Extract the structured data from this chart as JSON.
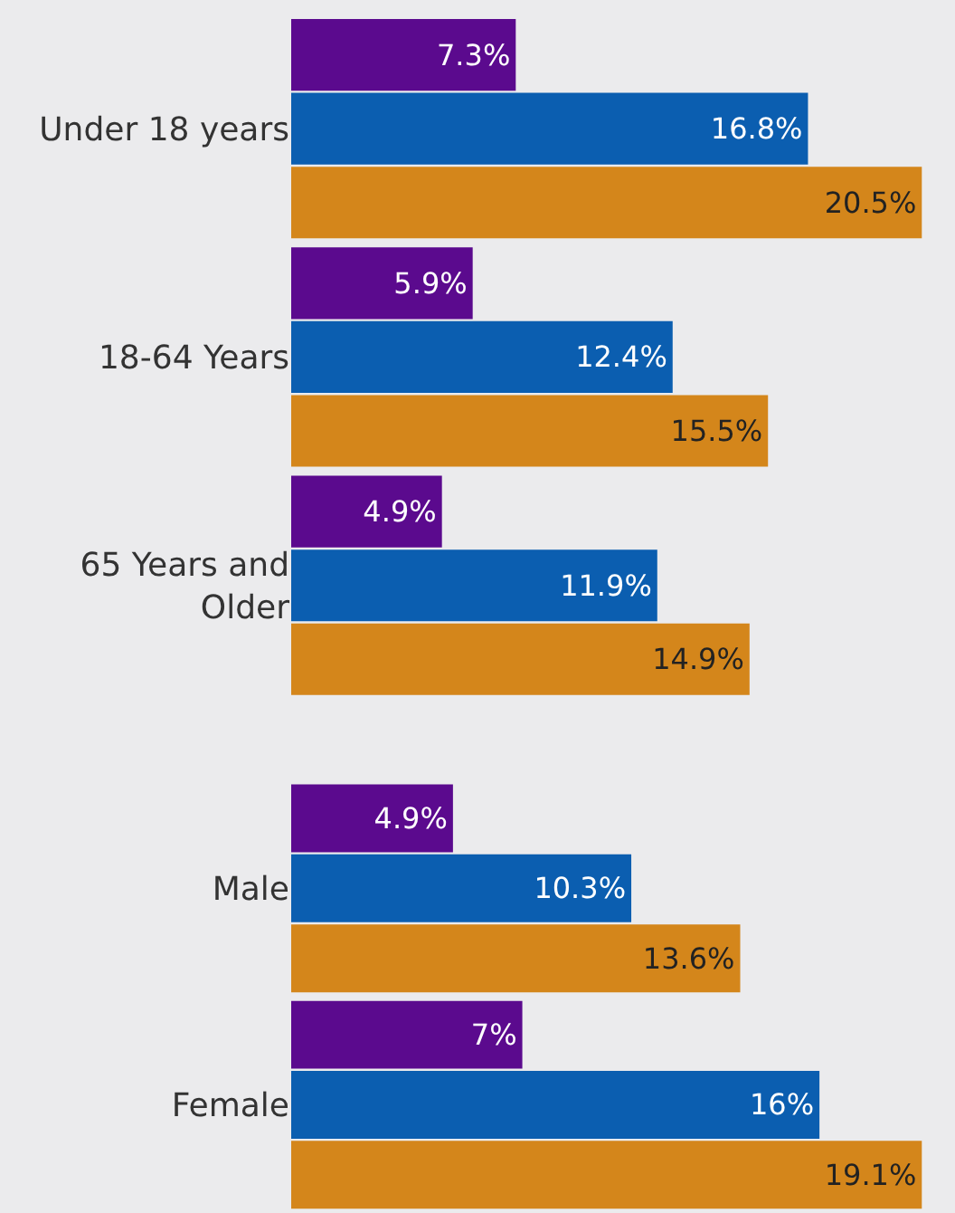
{
  "chart_data": [
    {
      "type": "bar",
      "orientation": "horizontal",
      "categories": [
        "Under 18 years",
        "18-64 Years",
        "65 Years and Older"
      ],
      "series": [
        {
          "color": "#5b0a8e",
          "values": [
            7.3,
            5.9,
            4.9
          ],
          "value_labels": [
            "7.3%",
            "5.9%",
            "4.9%"
          ]
        },
        {
          "color": "#0b5eb0",
          "values": [
            16.8,
            12.4,
            11.9
          ],
          "value_labels": [
            "16.8%",
            "12.4%",
            "11.9%"
          ]
        },
        {
          "color": "#d4861b",
          "values": [
            20.5,
            15.5,
            14.9
          ],
          "value_labels": [
            "20.5%",
            "15.5%",
            "14.9%"
          ]
        }
      ]
    },
    {
      "type": "bar",
      "orientation": "horizontal",
      "categories": [
        "Male",
        "Female"
      ],
      "series": [
        {
          "color": "#5b0a8e",
          "values": [
            4.9,
            7
          ],
          "value_labels": [
            "4.9%",
            "7%"
          ]
        },
        {
          "color": "#0b5eb0",
          "values": [
            10.3,
            16
          ],
          "value_labels": [
            "10.3%",
            "16%"
          ]
        },
        {
          "color": "#d4861b",
          "values": [
            13.6,
            19.1
          ],
          "value_labels": [
            "13.6%",
            "19.1%"
          ]
        }
      ]
    }
  ]
}
